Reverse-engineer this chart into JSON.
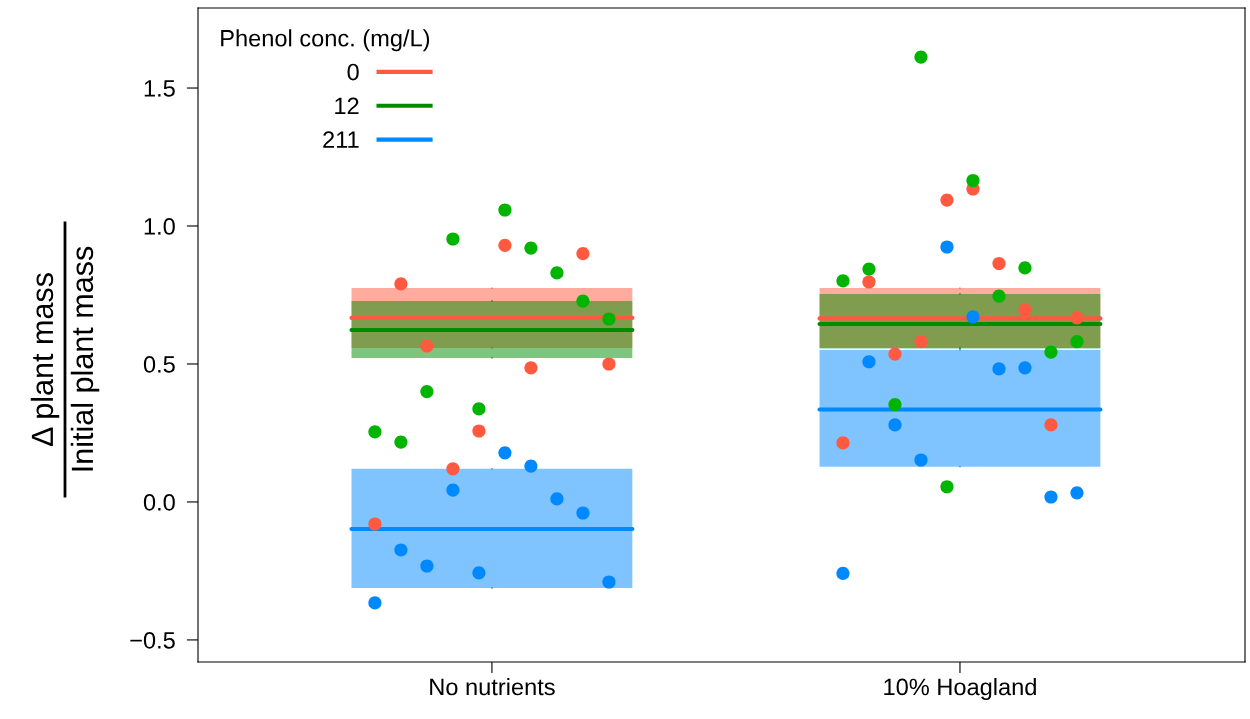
{
  "chart_data": {
    "type": "scatter",
    "ylabel": "Δ plant mass\nInitial plant mass",
    "legend_title": "Phenol conc. (mg/L)",
    "legend": "top left",
    "grid": false,
    "marker": "circle",
    "categories": [
      "No nutrients",
      "10% Hoagland"
    ],
    "ylim": [
      -0.58,
      1.79
    ],
    "yticks": [
      {
        "value": -0.5,
        "label": "−0.5"
      },
      {
        "value": 0,
        "label": "0.0"
      },
      {
        "value": 0.5,
        "label": "0.5"
      },
      {
        "value": 1,
        "label": "1.0"
      },
      {
        "value": 1.5,
        "label": "1.5"
      }
    ],
    "series": [
      {
        "type": "box",
        "name": "0",
        "color": "#ff5a40",
        "boxes": [
          {
            "low": 0.558,
            "q1": 0.558,
            "median": 0.667,
            "q3": 0.775,
            "high": 0.775
          },
          {
            "low": 0.558,
            "q1": 0.558,
            "median": 0.665,
            "q3": 0.775,
            "high": 0.775
          }
        ]
      },
      {
        "type": "box",
        "name": "12",
        "color": "#008c00",
        "boxes": [
          {
            "low": 0.522,
            "q1": 0.522,
            "median": 0.623,
            "q3": 0.728,
            "high": 0.728
          },
          {
            "low": 0.556,
            "q1": 0.556,
            "median": 0.645,
            "q3": 0.754,
            "high": 0.754
          }
        ]
      },
      {
        "type": "box",
        "name": "211",
        "color": "#0088ff",
        "boxes": [
          {
            "low": -0.312,
            "q1": -0.312,
            "median": -0.098,
            "q3": 0.12,
            "high": 0.12
          },
          {
            "low": 0.128,
            "q1": 0.128,
            "median": 0.335,
            "q3": 0.551,
            "high": 0.551
          }
        ]
      },
      {
        "color": "#ff5a40",
        "x": [
          "No nutrients",
          "No nutrients",
          "No nutrients",
          "No nutrients",
          "No nutrients",
          "No nutrients",
          "No nutrients",
          "No nutrients",
          "No nutrients",
          "No nutrients",
          "10% Hoagland",
          "10% Hoagland",
          "10% Hoagland",
          "10% Hoagland",
          "10% Hoagland",
          "10% Hoagland",
          "10% Hoagland",
          "10% Hoagland",
          "10% Hoagland",
          "10% Hoagland"
        ],
        "values": [
          -0.08,
          0.79,
          0.565,
          0.12,
          0.257,
          0.93,
          0.486,
          null,
          0.9,
          0.5,
          0.214,
          0.797,
          0.536,
          0.581,
          1.094,
          1.134,
          0.864,
          0.696,
          0.279,
          0.667
        ]
      },
      {
        "color": "#00b400",
        "x": [
          "No nutrients",
          "No nutrients",
          "No nutrients",
          "No nutrients",
          "No nutrients",
          "No nutrients",
          "No nutrients",
          "No nutrients",
          "No nutrients",
          "No nutrients",
          "10% Hoagland",
          "10% Hoagland",
          "10% Hoagland",
          "10% Hoagland",
          "10% Hoagland",
          "10% Hoagland",
          "10% Hoagland",
          "10% Hoagland",
          "10% Hoagland",
          "10% Hoagland"
        ],
        "values": [
          0.254,
          0.217,
          0.4,
          0.953,
          0.337,
          1.058,
          0.92,
          0.83,
          0.728,
          0.663,
          0.801,
          0.844,
          0.353,
          1.612,
          0.055,
          1.165,
          0.746,
          0.848,
          0.543,
          0.581
        ]
      },
      {
        "color": "#0088ff",
        "x": [
          "No nutrients",
          "No nutrients",
          "No nutrients",
          "No nutrients",
          "No nutrients",
          "No nutrients",
          "No nutrients",
          "No nutrients",
          "No nutrients",
          "No nutrients",
          "10% Hoagland",
          "10% Hoagland",
          "10% Hoagland",
          "10% Hoagland",
          "10% Hoagland",
          "10% Hoagland",
          "10% Hoagland",
          "10% Hoagland",
          "10% Hoagland",
          "10% Hoagland"
        ],
        "values": [
          -0.366,
          -0.174,
          -0.232,
          0.043,
          -0.257,
          0.178,
          0.13,
          0.011,
          -0.04,
          -0.29,
          -0.259,
          0.508,
          0.279,
          0.152,
          0.924,
          0.671,
          0.482,
          0.486,
          0.018,
          0.033
        ]
      }
    ]
  }
}
